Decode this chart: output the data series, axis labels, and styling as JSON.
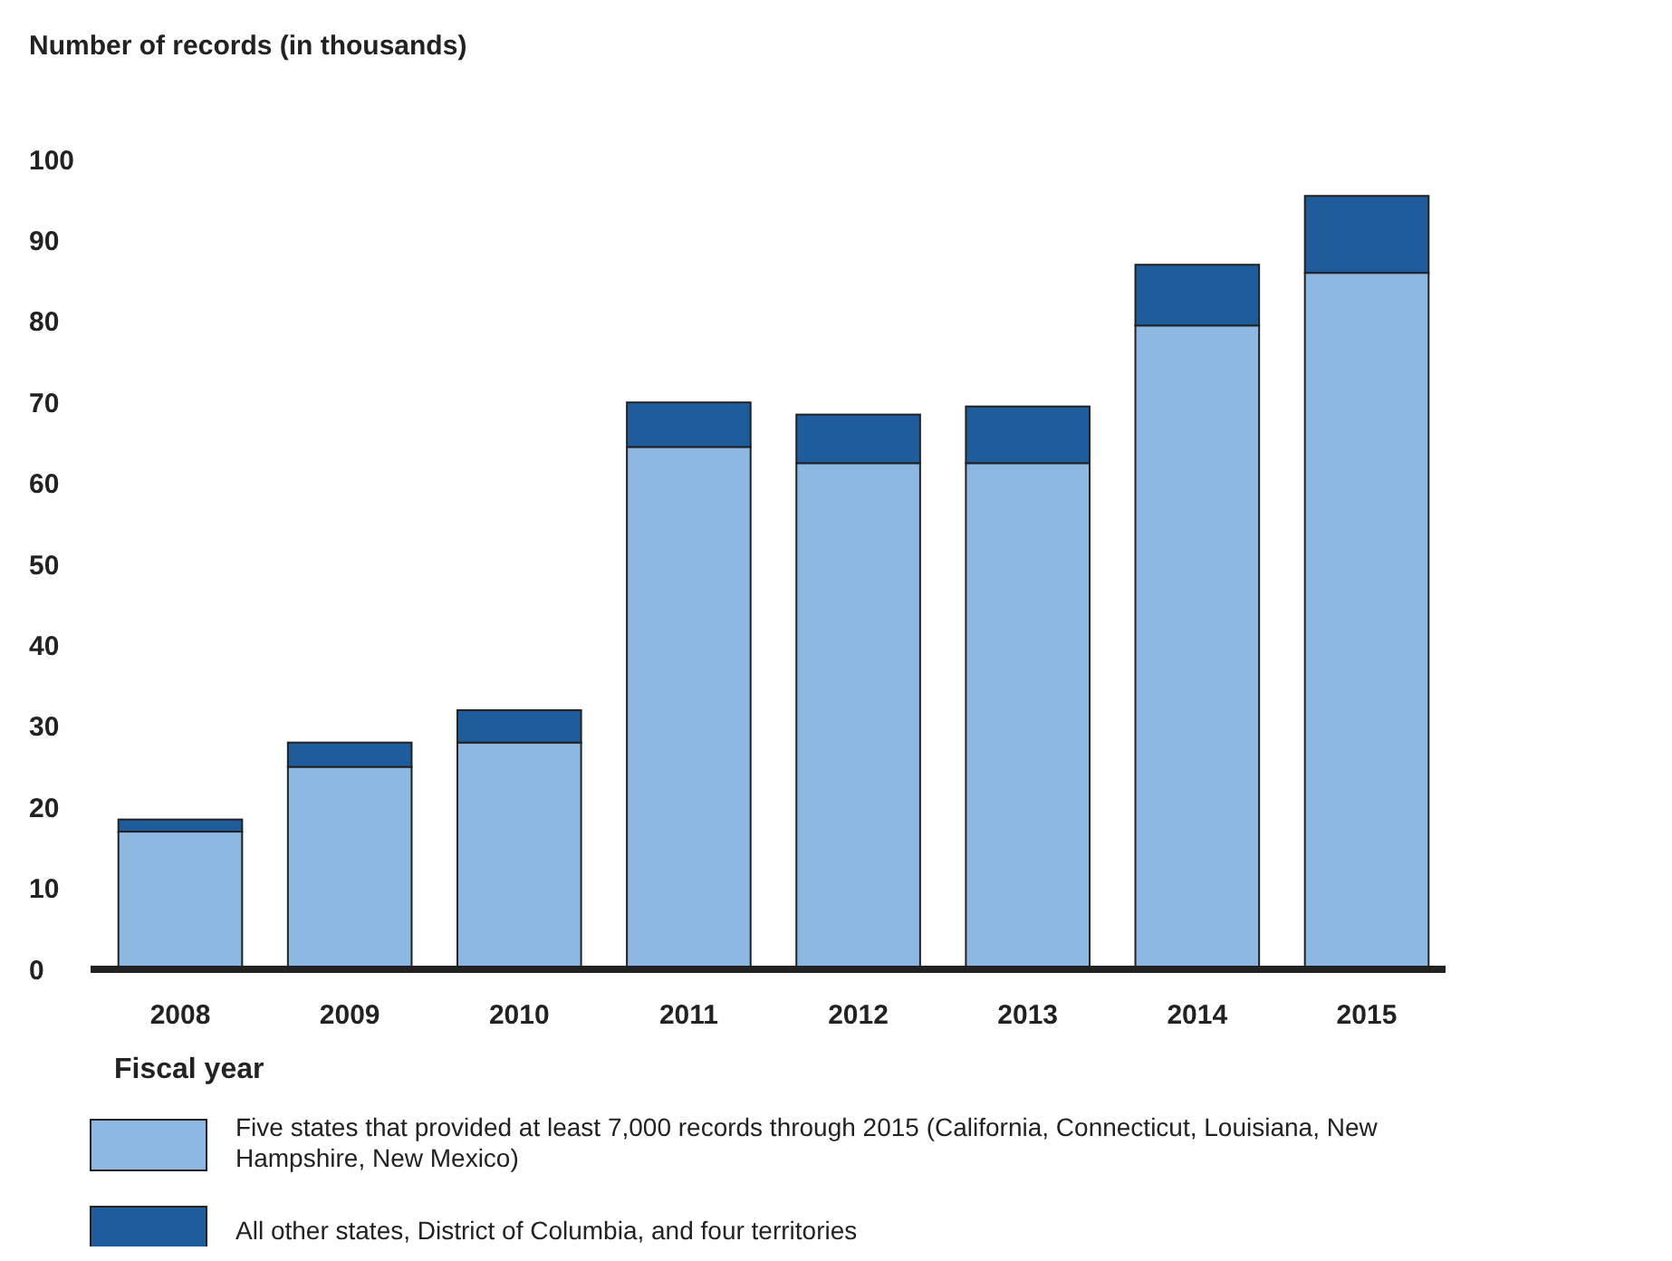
{
  "chart_data": {
    "type": "bar",
    "stacked": true,
    "ylabel": "Number of records (in thousands)",
    "xlabel": "Fiscal year",
    "categories": [
      "2008",
      "2009",
      "2010",
      "2011",
      "2012",
      "2013",
      "2014",
      "2015"
    ],
    "series": [
      {
        "name": "Five states that provided at least 7,000 records through 2015 (California, Connecticut, Louisiana, New Hampshire, New Mexico)",
        "color": "#8db8e2",
        "values": [
          17,
          25,
          28,
          64.5,
          62.5,
          62.5,
          79.5,
          86
        ]
      },
      {
        "name": "All other states, District of Columbia, and four territories",
        "color": "#1f5c9c",
        "values": [
          1.5,
          3,
          4,
          5.5,
          6,
          7,
          7.5,
          9.5
        ]
      }
    ],
    "ylim": [
      0,
      100
    ],
    "yticks": [
      0,
      10,
      20,
      30,
      40,
      50,
      60,
      70,
      80,
      90,
      100
    ],
    "grid": false,
    "legend": "bottom"
  }
}
